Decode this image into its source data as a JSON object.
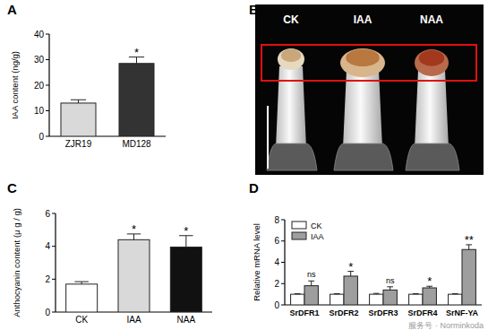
{
  "chart_data": [
    {
      "type": "bar",
      "title": "A",
      "ylabel": "IAA content (ng/g)",
      "categories": [
        "ZJR19",
        "MD128"
      ],
      "values": [
        13,
        28.5
      ],
      "errors": [
        1.3,
        2.5
      ],
      "colors": [
        "#d9d9d9",
        "#333333"
      ],
      "annotations": [
        null,
        "*"
      ],
      "ylim": [
        0,
        40
      ],
      "yticks": [
        0,
        10,
        20,
        30,
        40
      ]
    },
    {
      "type": "bar",
      "title": "C",
      "ylabel": "Anthocyanin content (μ g / g)",
      "categories": [
        "CK",
        "IAA",
        "NAA"
      ],
      "values": [
        1.7,
        4.4,
        3.95
      ],
      "errors": [
        0.15,
        0.35,
        0.7
      ],
      "colors": [
        "#ffffff",
        "#d9d9d9",
        "#111111"
      ],
      "annotations": [
        null,
        "*",
        "*"
      ],
      "ylim": [
        0,
        6
      ],
      "yticks": [
        0,
        2,
        4,
        6
      ]
    },
    {
      "type": "bar",
      "title": "D",
      "ylabel": "Relative mRNA level",
      "categories": [
        "SrDFR1",
        "SrDFR2",
        "SrDFR3",
        "SrDFR4",
        "SrNF-YA"
      ],
      "series": [
        {
          "name": "CK",
          "color": "#ffffff",
          "values": [
            1,
            1,
            1,
            1,
            1
          ],
          "errors": [
            0.05,
            0.05,
            0.08,
            0.05,
            0.05
          ]
        },
        {
          "name": "IAA",
          "color": "#9e9e9e",
          "values": [
            1.8,
            2.7,
            1.4,
            1.6,
            5.2
          ],
          "errors": [
            0.45,
            0.45,
            0.3,
            0.15,
            0.45
          ]
        }
      ],
      "annotations": [
        "ns",
        "*",
        "ns",
        "*",
        "**"
      ],
      "legend": "top-left",
      "ylim": [
        0,
        8
      ],
      "yticks": [
        0,
        2,
        4,
        6,
        8
      ]
    }
  ],
  "photo": {
    "title": "B",
    "labels": [
      "CK",
      "IAA",
      "NAA"
    ]
  },
  "watermark": "服务号 · Norminkoda"
}
